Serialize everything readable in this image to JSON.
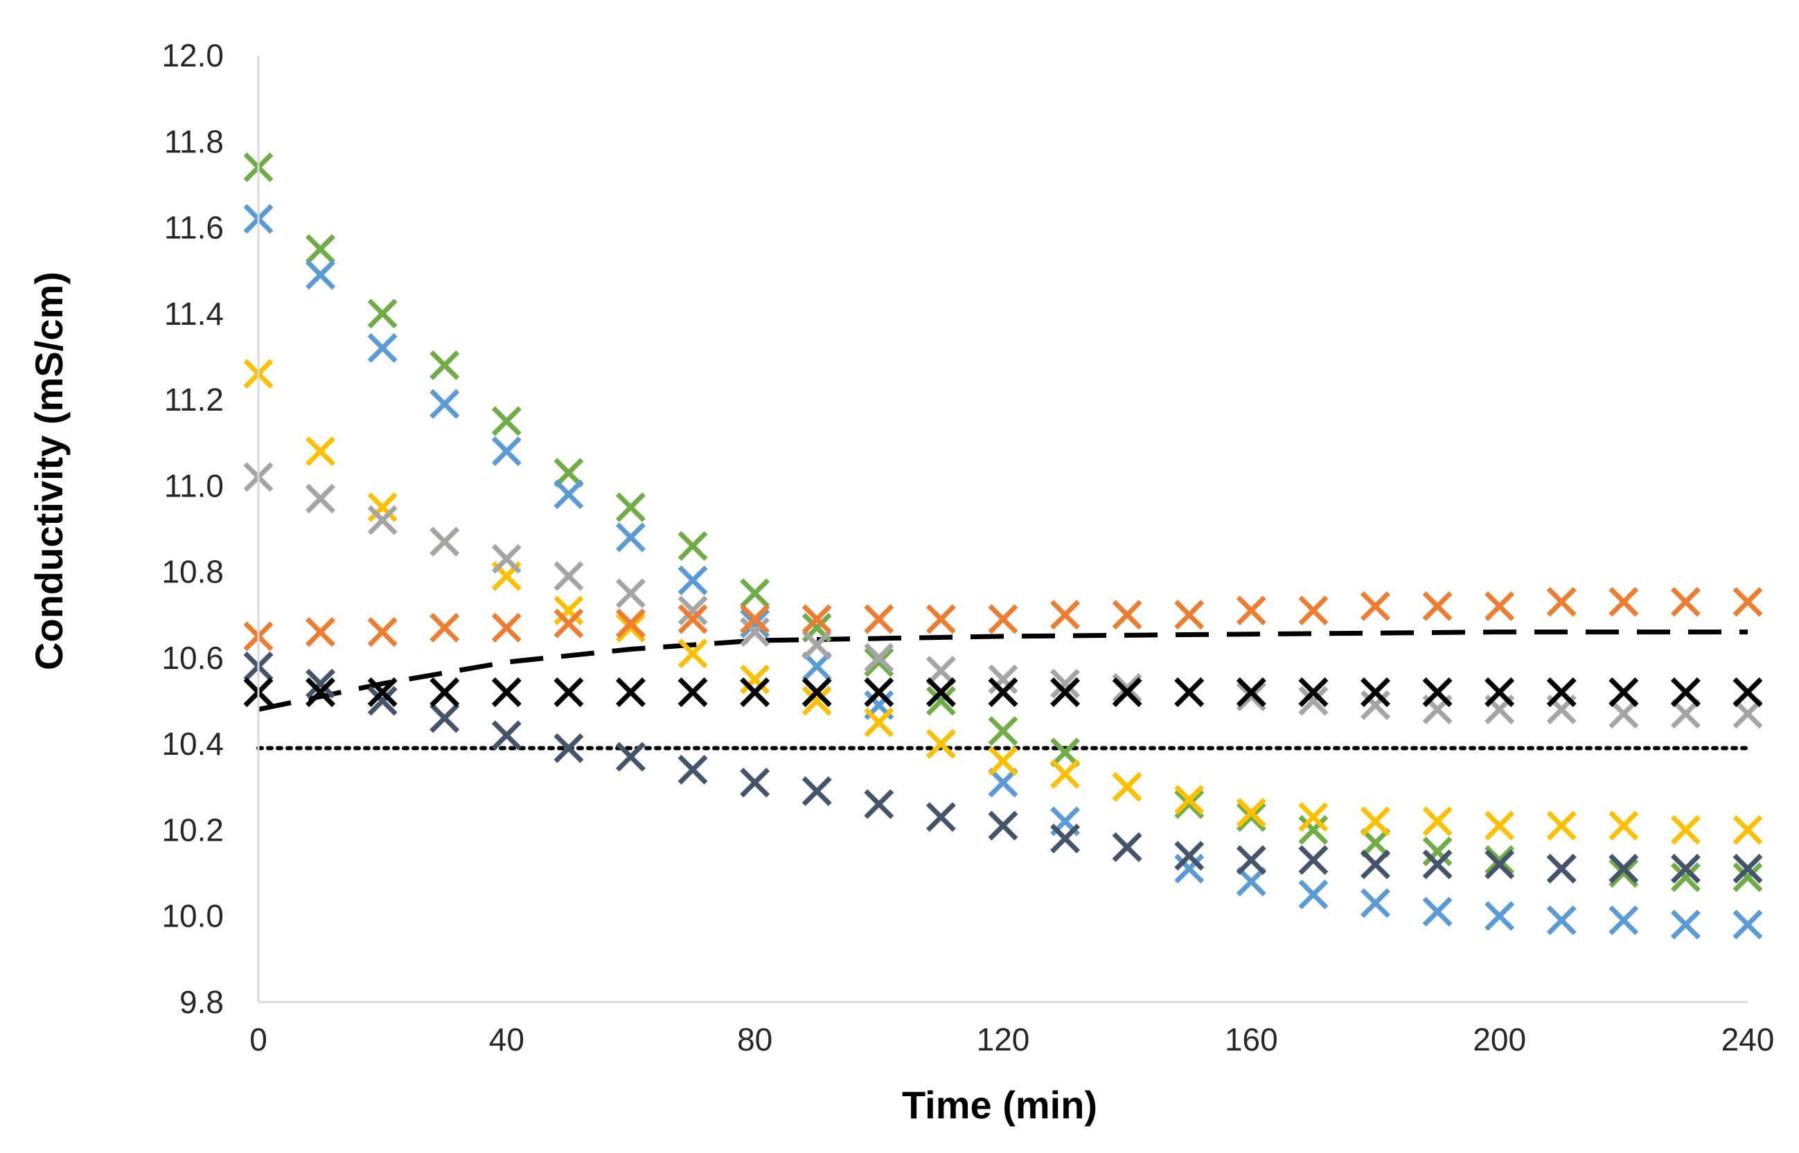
{
  "chart_data": {
    "type": "scatter",
    "title": "",
    "xlabel": "Time (min)",
    "ylabel": "Conductivity (mS/cm)",
    "xlim": [
      0,
      240
    ],
    "ylim": [
      9.8,
      12.0
    ],
    "xticks": [
      0,
      40,
      80,
      120,
      160,
      200,
      240
    ],
    "xtick_labels": [
      "0",
      "40",
      "80",
      "120",
      "160",
      "200",
      "240"
    ],
    "yticks": [
      9.8,
      10.0,
      10.2,
      10.4,
      10.6,
      10.8,
      11.0,
      11.2,
      11.4,
      11.6,
      11.8,
      12.0
    ],
    "ytick_labels": [
      "9.8",
      "10.0",
      "10.2",
      "10.4",
      "10.6",
      "10.8",
      "11.0",
      "11.2",
      "11.4",
      "11.6",
      "11.8",
      "12.0"
    ],
    "grid": false,
    "legend": "none",
    "series": [
      {
        "name": "green",
        "color": "#70AD47",
        "marker": "x",
        "x": [
          0,
          10,
          20,
          30,
          40,
          50,
          60,
          70,
          80,
          90,
          100,
          110,
          120,
          130
        ],
        "y": [
          11.74,
          11.55,
          11.4,
          11.28,
          11.15,
          11.03,
          10.95,
          10.86,
          10.75,
          10.67,
          10.59,
          10.5,
          10.43,
          10.38
        ]
      },
      {
        "name": "green-tail",
        "color": "#70AD47",
        "marker": "x",
        "x": [
          140,
          150,
          160,
          170,
          180,
          190,
          200,
          210,
          220,
          230,
          240
        ],
        "y": [
          10.3,
          10.26,
          10.23,
          10.2,
          10.17,
          10.15,
          10.13,
          10.11,
          10.1,
          10.09,
          10.09
        ]
      },
      {
        "name": "blue",
        "color": "#5B9BD5",
        "marker": "x",
        "x": [
          0,
          10,
          20,
          30,
          40,
          50,
          60,
          70,
          80,
          90,
          100,
          110,
          120,
          130,
          140,
          150,
          160,
          170,
          180,
          190,
          200,
          210,
          220,
          230,
          240
        ],
        "y": [
          11.62,
          11.49,
          11.32,
          11.19,
          11.08,
          10.98,
          10.88,
          10.78,
          10.68,
          10.58,
          10.49,
          10.4,
          10.31,
          10.22,
          10.16,
          10.11,
          10.08,
          10.05,
          10.03,
          10.01,
          10.0,
          9.99,
          9.99,
          9.98,
          9.98
        ]
      },
      {
        "name": "yellow",
        "color": "#FFC000",
        "marker": "x",
        "x": [
          0,
          10,
          20,
          30,
          40,
          50,
          60,
          70,
          80,
          90,
          100,
          110,
          120,
          130,
          140,
          150,
          160,
          170,
          180,
          190,
          200,
          210,
          220,
          230,
          240
        ],
        "y": [
          11.26,
          11.08,
          10.95,
          10.87,
          10.79,
          10.71,
          10.67,
          10.61,
          10.55,
          10.5,
          10.45,
          10.4,
          10.36,
          10.33,
          10.3,
          10.27,
          10.24,
          10.23,
          10.22,
          10.22,
          10.21,
          10.21,
          10.21,
          10.2,
          10.2
        ]
      },
      {
        "name": "gray",
        "color": "#A5A5A5",
        "marker": "x",
        "x": [
          0,
          10,
          20,
          30,
          40,
          50,
          60,
          70,
          80,
          90,
          100,
          110,
          120,
          130,
          140,
          150,
          160,
          170,
          180,
          190,
          200,
          210,
          220,
          230,
          240
        ],
        "y": [
          11.02,
          10.97,
          10.92,
          10.87,
          10.83,
          10.79,
          10.75,
          10.71,
          10.66,
          10.63,
          10.6,
          10.57,
          10.55,
          10.54,
          10.53,
          10.52,
          10.51,
          10.5,
          10.49,
          10.48,
          10.48,
          10.48,
          10.47,
          10.47,
          10.47
        ]
      },
      {
        "name": "orange",
        "color": "#ED7D31",
        "marker": "x",
        "x": [
          0,
          10,
          20,
          30,
          40,
          50,
          60,
          70,
          80,
          90,
          100,
          110,
          120,
          130,
          140,
          150,
          160,
          170,
          180,
          190,
          200,
          210,
          220,
          230,
          240
        ],
        "y": [
          10.65,
          10.66,
          10.66,
          10.67,
          10.67,
          10.68,
          10.68,
          10.69,
          10.69,
          10.69,
          10.69,
          10.69,
          10.69,
          10.7,
          10.7,
          10.7,
          10.71,
          10.71,
          10.72,
          10.72,
          10.72,
          10.73,
          10.73,
          10.73,
          10.73
        ]
      },
      {
        "name": "dark-blue",
        "color": "#44546A",
        "marker": "x",
        "x": [
          0,
          10,
          20,
          30,
          40,
          50,
          60,
          70,
          80,
          90,
          100,
          110,
          120,
          130,
          140,
          150,
          160,
          170,
          180,
          190,
          200,
          210,
          220,
          230,
          240
        ],
        "y": [
          10.58,
          10.54,
          10.5,
          10.46,
          10.42,
          10.39,
          10.37,
          10.34,
          10.31,
          10.29,
          10.26,
          10.23,
          10.21,
          10.18,
          10.16,
          10.14,
          10.13,
          10.13,
          10.12,
          10.12,
          10.12,
          10.11,
          10.11,
          10.11,
          10.11
        ]
      },
      {
        "name": "black",
        "color": "#000000",
        "marker": "x",
        "x": [
          0,
          10,
          20,
          30,
          40,
          50,
          60,
          70,
          80,
          90,
          100,
          110,
          120,
          130,
          140,
          150,
          160,
          170,
          180,
          190,
          200,
          210,
          220,
          230,
          240
        ],
        "y": [
          10.52,
          10.52,
          10.52,
          10.52,
          10.52,
          10.52,
          10.52,
          10.52,
          10.52,
          10.52,
          10.52,
          10.52,
          10.52,
          10.52,
          10.52,
          10.52,
          10.52,
          10.52,
          10.52,
          10.52,
          10.52,
          10.52,
          10.52,
          10.52,
          10.52
        ]
      }
    ],
    "reference_lines": [
      {
        "name": "dashed-line",
        "color": "#000000",
        "style": "dashed",
        "x": [
          0,
          20,
          40,
          60,
          80,
          100,
          120,
          160,
          200,
          240
        ],
        "y": [
          10.48,
          10.54,
          10.59,
          10.62,
          10.64,
          10.645,
          10.65,
          10.655,
          10.66,
          10.66
        ]
      },
      {
        "name": "dotted-line",
        "color": "#000000",
        "style": "dotted",
        "x": [
          0,
          240
        ],
        "y": [
          10.39,
          10.39
        ]
      }
    ]
  }
}
